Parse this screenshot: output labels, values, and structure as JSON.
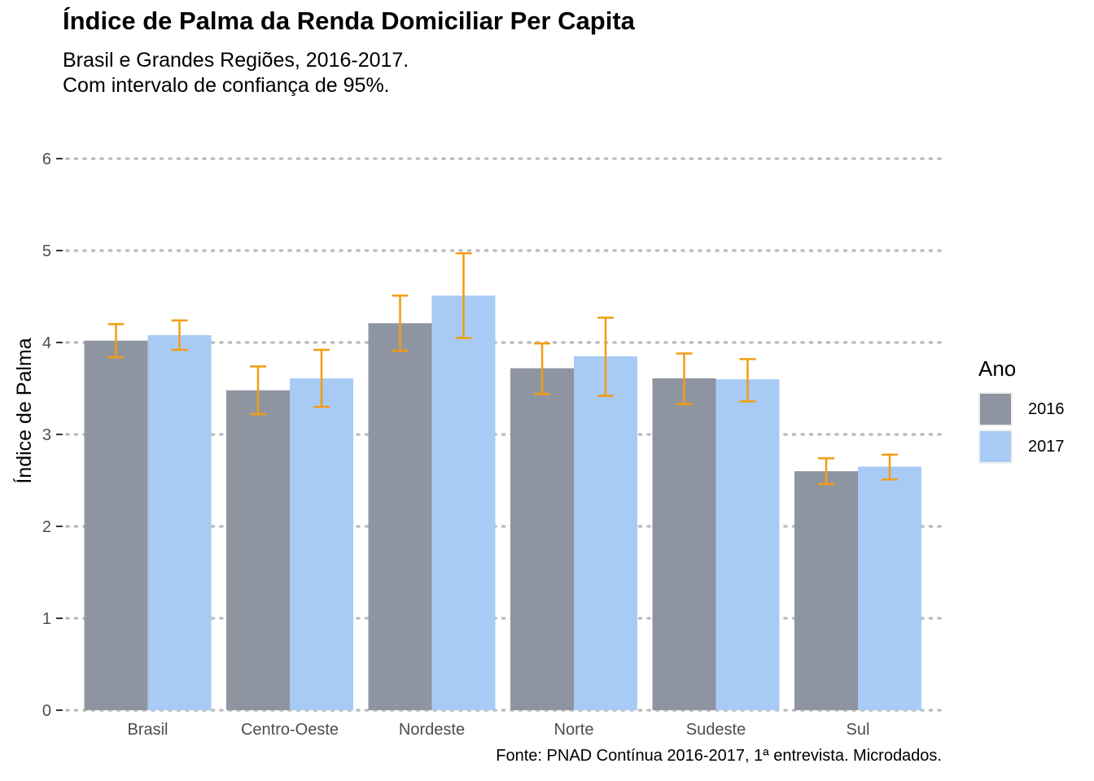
{
  "title": "Índice de Palma da Renda Domiciliar Per Capita",
  "subtitle_line1": "Brasil e Grandes Regiões, 2016-2017.",
  "subtitle_line2": "Com intervalo de confiança de 95%.",
  "caption": "Fonte: PNAD Contínua 2016-2017, 1ª entrevista. Microdados.",
  "colors": {
    "series_2016": "#8f95a0",
    "series_2017": "#a8cbf5",
    "error_bar": "#f39c12",
    "grid": "#bdbdbd"
  },
  "legend": {
    "title": "Ano",
    "items": [
      {
        "label": "2016",
        "color": "#8f95a0"
      },
      {
        "label": "2017",
        "color": "#a8cbf5"
      }
    ]
  },
  "chart_data": {
    "type": "bar",
    "title": "Índice de Palma da Renda Domiciliar Per Capita",
    "xlabel": "",
    "ylabel": "Índice de Palma",
    "ylim": [
      0,
      6
    ],
    "yticks": [
      "0",
      "1",
      "2",
      "3",
      "4",
      "5",
      "6"
    ],
    "grid": "horizontal dotted",
    "legend_position": "right",
    "categories": [
      "Brasil",
      "Centro-Oeste",
      "Nordeste",
      "Norte",
      "Sudeste",
      "Sul"
    ],
    "series": [
      {
        "name": "2016",
        "values": [
          4.02,
          3.48,
          4.21,
          3.72,
          3.61,
          2.6
        ],
        "ci_low": [
          3.84,
          3.22,
          3.91,
          3.44,
          3.33,
          2.46
        ],
        "ci_high": [
          4.2,
          3.74,
          4.51,
          3.99,
          3.88,
          2.74
        ]
      },
      {
        "name": "2017",
        "values": [
          4.08,
          3.61,
          4.51,
          3.85,
          3.6,
          2.65
        ],
        "ci_low": [
          3.92,
          3.3,
          4.05,
          3.42,
          3.36,
          2.51
        ],
        "ci_high": [
          4.24,
          3.92,
          4.97,
          4.27,
          3.82,
          2.78
        ]
      }
    ]
  }
}
